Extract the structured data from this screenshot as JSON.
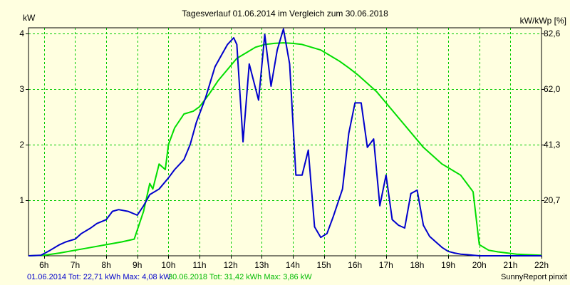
{
  "chart_data": {
    "type": "line",
    "title": "Tagesverlauf 01.06.2014 im Vergleich zum 30.06.2018",
    "ylabel_left": "kW",
    "ylabel_right": "kW/kWp [%]",
    "xlim": [
      5.5,
      22.0
    ],
    "ylim": [
      0,
      4.1
    ],
    "x_ticks": [
      6,
      7,
      8,
      9,
      10,
      11,
      12,
      13,
      14,
      15,
      16,
      17,
      18,
      19,
      20,
      21,
      22
    ],
    "x_tick_labels": [
      "6h",
      "7h",
      "8h",
      "9h",
      "10h",
      "11h",
      "12h",
      "13h",
      "14h",
      "15h",
      "16h",
      "17h",
      "18h",
      "19h",
      "20h",
      "21h",
      "22h"
    ],
    "y_ticks_left": [
      1,
      2,
      3,
      4
    ],
    "y_tick_labels_left": [
      "1",
      "2",
      "3",
      "4"
    ],
    "y_ticks_right_at": [
      1.0,
      2.0,
      3.0,
      4.0
    ],
    "y_tick_labels_right": [
      "20,7",
      "41,3",
      "62,0",
      "82,6"
    ],
    "grid": true,
    "legend_placement": "bottom",
    "series": [
      {
        "name": "01.06.2014",
        "color": "#0000cc",
        "footer": "01.06.2014 Tot: 22,71 kWh Max: 4,08 kW",
        "x": [
          5.5,
          5.9,
          6.2,
          6.5,
          6.7,
          7.0,
          7.2,
          7.5,
          7.7,
          8.0,
          8.2,
          8.4,
          8.7,
          9.0,
          9.2,
          9.4,
          9.7,
          10.0,
          10.2,
          10.5,
          10.7,
          10.9,
          11.2,
          11.5,
          11.7,
          11.9,
          12.1,
          12.2,
          12.4,
          12.6,
          12.9,
          13.1,
          13.3,
          13.5,
          13.7,
          13.9,
          14.1,
          14.3,
          14.5,
          14.7,
          14.9,
          15.1,
          15.3,
          15.6,
          15.8,
          16.0,
          16.2,
          16.4,
          16.6,
          16.8,
          17.0,
          17.2,
          17.4,
          17.6,
          17.8,
          18.0,
          18.2,
          18.4,
          18.6,
          18.8,
          19.0,
          19.2,
          19.4,
          19.6,
          19.8,
          20.0,
          20.3,
          20.6,
          20.9,
          21.2,
          21.5,
          22.0
        ],
        "y": [
          0.0,
          0.01,
          0.1,
          0.2,
          0.25,
          0.3,
          0.4,
          0.5,
          0.58,
          0.65,
          0.8,
          0.83,
          0.8,
          0.73,
          0.9,
          1.1,
          1.2,
          1.4,
          1.55,
          1.73,
          2.0,
          2.4,
          2.85,
          3.4,
          3.6,
          3.8,
          3.92,
          3.8,
          2.05,
          3.45,
          2.8,
          3.98,
          3.05,
          3.7,
          4.08,
          3.45,
          1.45,
          1.45,
          1.9,
          0.52,
          0.33,
          0.4,
          0.7,
          1.2,
          2.2,
          2.75,
          2.75,
          1.95,
          2.1,
          0.9,
          1.45,
          0.65,
          0.55,
          0.5,
          1.12,
          1.18,
          0.55,
          0.35,
          0.25,
          0.15,
          0.08,
          0.05,
          0.03,
          0.02,
          0.01,
          0.0,
          0.0,
          0.0,
          0.0,
          0.0,
          0.0,
          0.0
        ]
      },
      {
        "name": "30.06.2018",
        "color": "#00dd00",
        "footer": "30.06.2018 Tot: 31,42 kWh Max: 3,86 kW",
        "x": [
          5.5,
          6.0,
          6.5,
          7.0,
          7.5,
          8.0,
          8.5,
          8.9,
          9.2,
          9.4,
          9.5,
          9.7,
          9.9,
          10.0,
          10.2,
          10.5,
          10.8,
          11.0,
          11.3,
          11.6,
          11.9,
          12.2,
          12.5,
          12.8,
          13.1,
          13.4,
          13.7,
          14.0,
          14.3,
          14.6,
          14.9,
          15.2,
          15.5,
          15.8,
          16.1,
          16.4,
          16.7,
          17.0,
          17.3,
          17.6,
          17.9,
          18.2,
          18.5,
          18.8,
          19.1,
          19.4,
          19.6,
          19.8,
          20.0,
          20.3,
          20.6,
          20.9,
          21.2,
          21.5,
          22.0
        ],
        "y": [
          0.0,
          0.01,
          0.05,
          0.1,
          0.15,
          0.2,
          0.25,
          0.3,
          0.8,
          1.3,
          1.2,
          1.65,
          1.55,
          2.0,
          2.3,
          2.55,
          2.6,
          2.68,
          2.9,
          3.15,
          3.35,
          3.55,
          3.65,
          3.75,
          3.8,
          3.82,
          3.83,
          3.82,
          3.8,
          3.75,
          3.7,
          3.6,
          3.5,
          3.38,
          3.25,
          3.1,
          2.95,
          2.75,
          2.55,
          2.35,
          2.15,
          1.95,
          1.8,
          1.65,
          1.55,
          1.45,
          1.3,
          1.15,
          0.2,
          0.1,
          0.07,
          0.05,
          0.03,
          0.02,
          0.01
        ]
      }
    ]
  },
  "footer": {
    "credit": "SunnyReport pinxit"
  }
}
